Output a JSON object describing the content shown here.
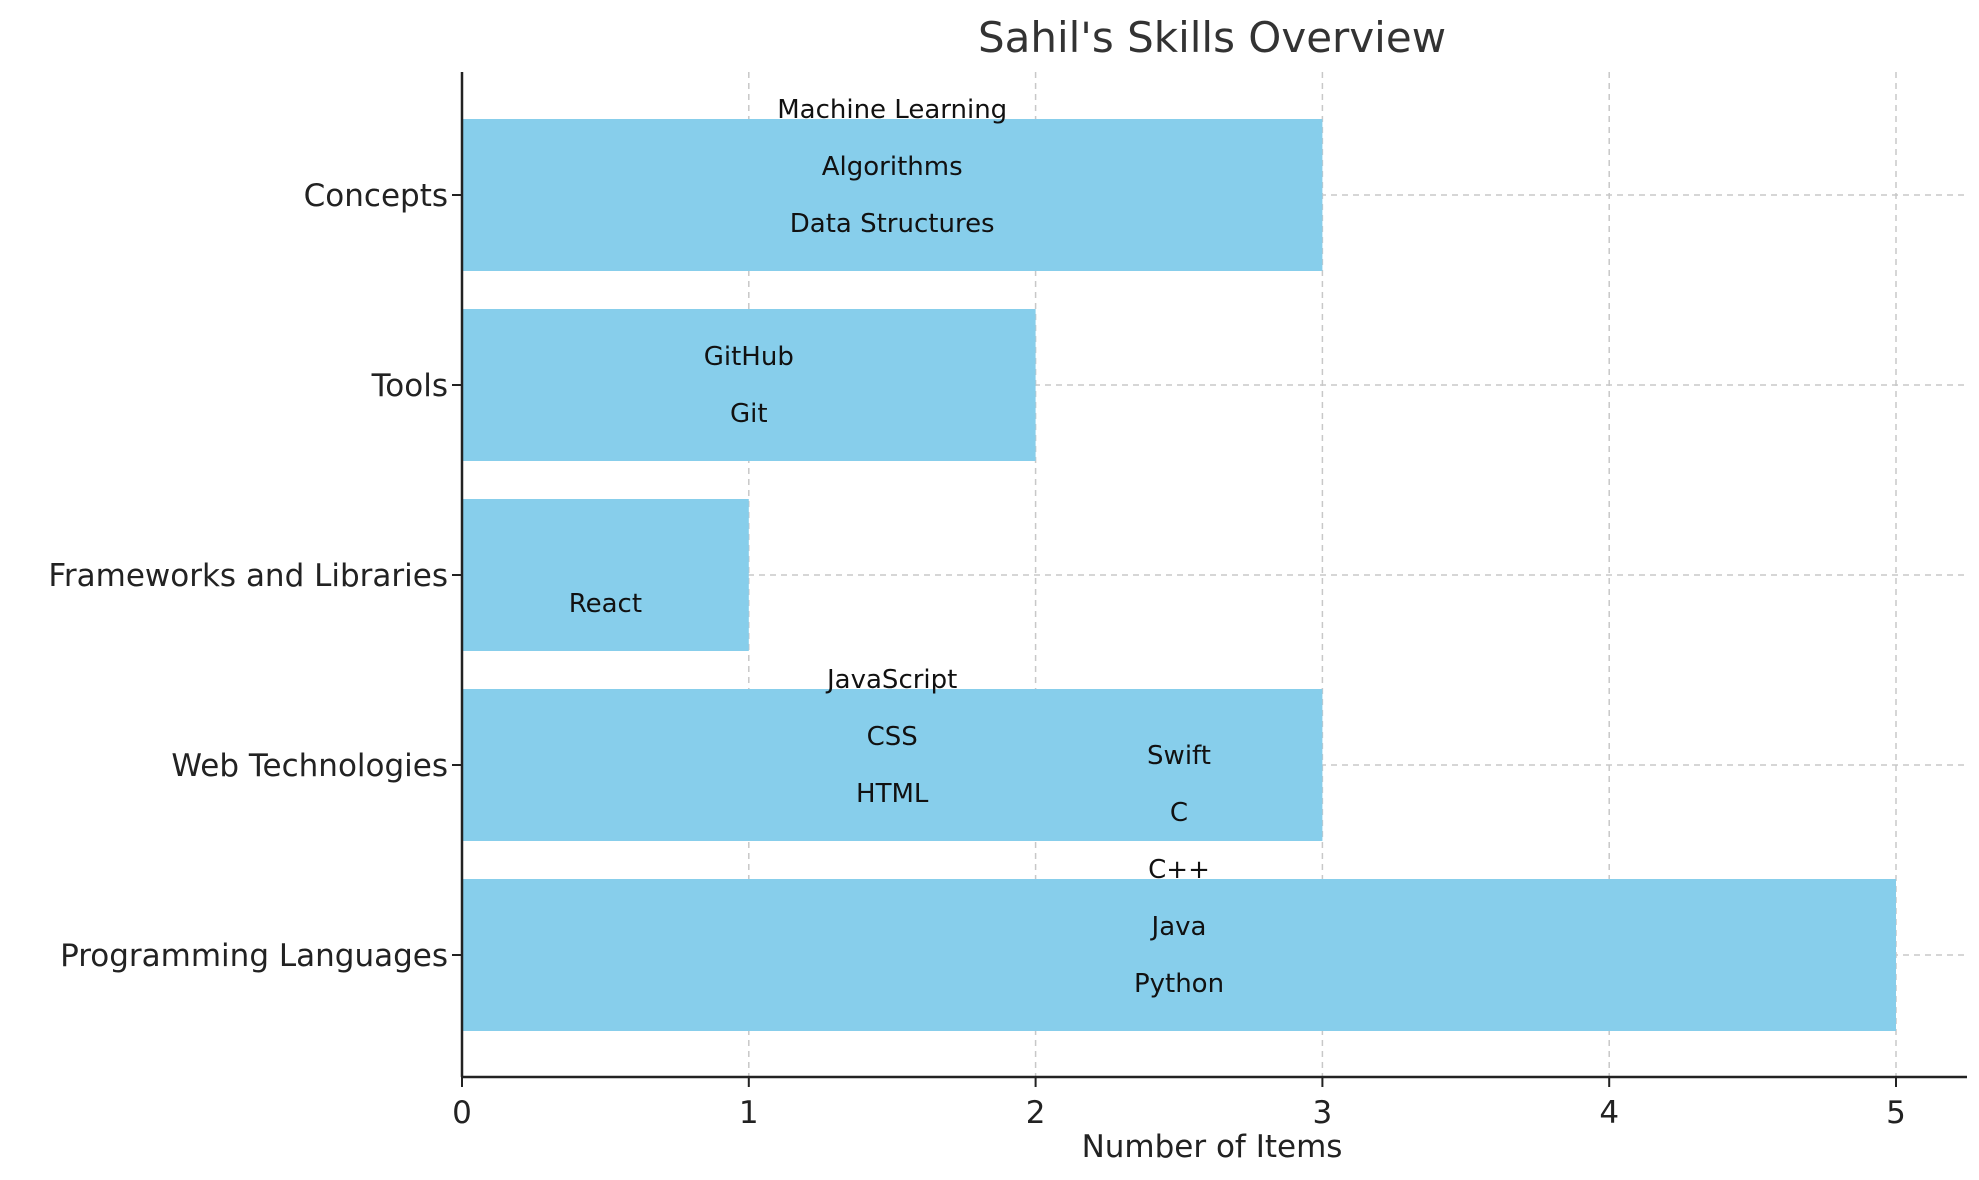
{
  "chart_data": {
    "type": "bar",
    "orientation": "horizontal",
    "title": "Sahil's Skills Overview",
    "xlabel": "Number of Items",
    "ylabel": "",
    "categories": [
      "Programming Languages",
      "Web Technologies",
      "Frameworks and Libraries",
      "Tools",
      "Concepts"
    ],
    "values": [
      5,
      3,
      1,
      2,
      3
    ],
    "items": [
      [
        "Python",
        "Java",
        "C++",
        "C",
        "Swift"
      ],
      [
        "HTML",
        "CSS",
        "JavaScript"
      ],
      [
        "React"
      ],
      [
        "Git",
        "GitHub"
      ],
      [
        "Data Structures",
        "Algorithms",
        "Machine Learning"
      ]
    ],
    "xlim": [
      0,
      5.25
    ],
    "xticks": [
      "0",
      "1",
      "2",
      "3",
      "4",
      "5"
    ],
    "grid": true,
    "bar_color": "#87CEEB"
  }
}
